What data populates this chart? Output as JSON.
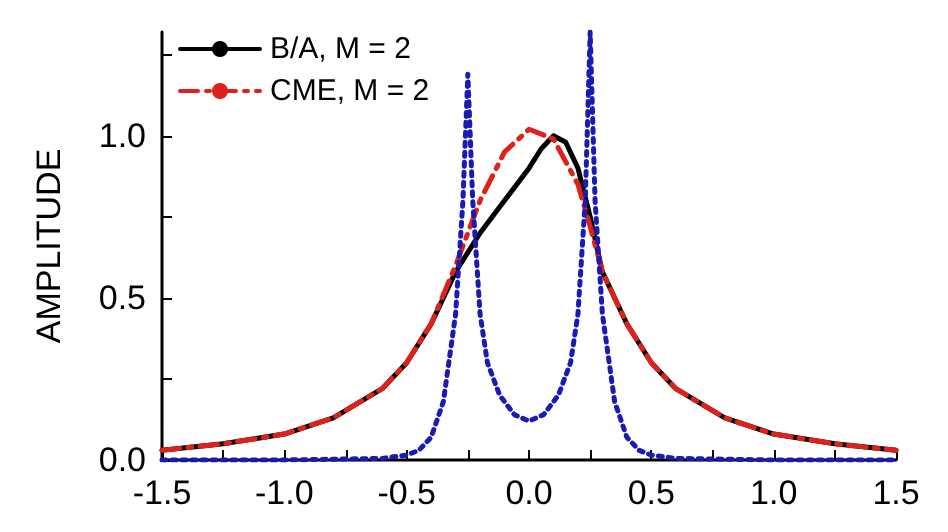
{
  "chart_data": {
    "type": "line",
    "ylabel": "AMPLITUDE",
    "xlim": [
      -1.5,
      1.5
    ],
    "ylim": [
      0,
      1.32
    ],
    "xticks": [
      -1.5,
      {
        "value": -1.25,
        "label": null
      },
      {
        "value": -1,
        "label": "-1.0"
      },
      {
        "value": -0.75,
        "label": null
      },
      -0.5,
      {
        "value": -0.25,
        "label": null
      },
      {
        "value": 0,
        "label": "0.0"
      },
      {
        "value": 0.25,
        "label": null
      },
      0.5,
      {
        "value": 0.75,
        "label": null
      },
      {
        "value": 1,
        "label": "1.0"
      },
      {
        "value": 1.25,
        "label": null
      },
      1.5
    ],
    "yticks": [
      {
        "value": 0,
        "label": "0.0"
      },
      {
        "value": 0.25,
        "label": null
      },
      0.5,
      {
        "value": 0.75,
        "label": null
      },
      {
        "value": 1,
        "label": "1.0"
      },
      {
        "value": 1.25,
        "label": null
      }
    ],
    "grid": false,
    "legend": "top left",
    "marker": "none",
    "series": [
      {
        "name": "B/A, M = 2",
        "color": "#000000",
        "line_style": "solid",
        "x": [
          -1.5,
          -1.25,
          -1.0,
          -0.8,
          -0.6,
          -0.5,
          -0.4,
          -0.3,
          -0.2,
          -0.1,
          0,
          0.05,
          0.1,
          0.15,
          0.2,
          0.25,
          0.3,
          0.4,
          0.5,
          0.6,
          0.8,
          1.0,
          1.25,
          1.5
        ],
        "values": [
          0.03,
          0.05,
          0.08,
          0.13,
          0.22,
          0.3,
          0.42,
          0.58,
          0.7,
          0.8,
          0.9,
          0.96,
          1.0,
          0.98,
          0.9,
          0.75,
          0.58,
          0.42,
          0.3,
          0.22,
          0.13,
          0.08,
          0.05,
          0.03
        ]
      },
      {
        "name": "CME, M = 2",
        "color": "#e0201b",
        "line_style": "dashed",
        "x": [
          -1.5,
          -1.25,
          -1.0,
          -0.8,
          -0.6,
          -0.5,
          -0.4,
          -0.3,
          -0.2,
          -0.1,
          0,
          0.1,
          0.2,
          0.25,
          0.3,
          0.4,
          0.5,
          0.6,
          0.8,
          1.0,
          1.25,
          1.5
        ],
        "values": [
          0.03,
          0.05,
          0.08,
          0.13,
          0.22,
          0.3,
          0.42,
          0.6,
          0.8,
          0.95,
          1.02,
          0.99,
          0.85,
          0.72,
          0.58,
          0.42,
          0.3,
          0.22,
          0.13,
          0.08,
          0.05,
          0.03
        ]
      },
      {
        "color": "#1a1ab4",
        "line_style": "dotted",
        "x": [
          -1.5,
          -1.0,
          -0.6,
          -0.5,
          -0.45,
          -0.4,
          -0.35,
          -0.3,
          -0.27,
          -0.25,
          -0.23,
          -0.2,
          -0.17,
          -0.12,
          -0.06,
          0,
          0.06,
          0.12,
          0.17,
          0.2,
          0.23,
          0.25,
          0.27,
          0.3,
          0.35,
          0.4,
          0.45,
          0.5,
          0.6,
          1.0,
          1.5
        ],
        "values": [
          0,
          0,
          0.005,
          0.015,
          0.03,
          0.07,
          0.18,
          0.45,
          0.8,
          1.19,
          0.8,
          0.45,
          0.3,
          0.2,
          0.14,
          0.12,
          0.14,
          0.2,
          0.3,
          0.45,
          0.8,
          1.32,
          0.8,
          0.45,
          0.18,
          0.07,
          0.03,
          0.015,
          0.005,
          0,
          0
        ]
      }
    ]
  }
}
